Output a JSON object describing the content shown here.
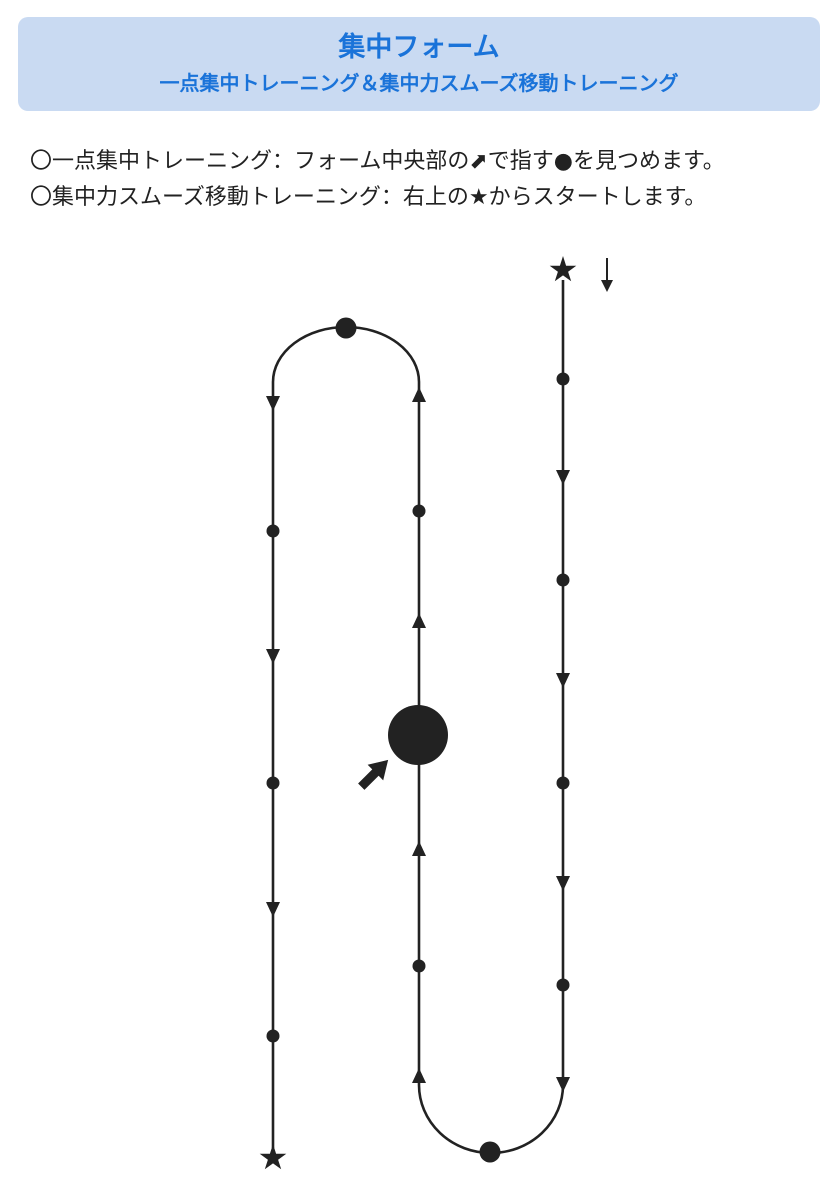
{
  "header": {
    "title": "集中フォーム",
    "subtitle": "一点集中トレーニング＆集中力スムーズ移動トレーニング"
  },
  "instructions": {
    "line1": "〇一点集中トレーニング：フォーム中央部の⬈で指す●を見つめます。",
    "line2": "〇集中力スムーズ移動トレーニング：右上の★からスタートします。"
  },
  "colors": {
    "header_bg": "#c9daf2",
    "title_text": "#1a73d9",
    "line": "#222222"
  },
  "icons": {
    "start_marker": "star-icon",
    "end_marker": "star-icon",
    "direction_hint": "down-arrow-icon",
    "focus_pointer": "diagonal-arrow-icon",
    "focus_point": "large-dot-icon"
  }
}
